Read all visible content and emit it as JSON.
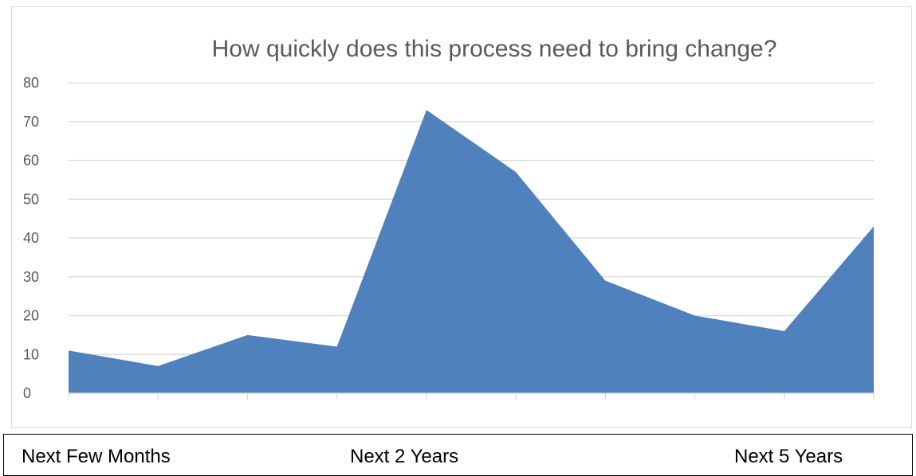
{
  "chart_data": {
    "type": "area",
    "title": "How quickly does this process need to bring change?",
    "xlabel": "",
    "ylabel": "",
    "x": [
      1,
      2,
      3,
      4,
      5,
      6,
      7,
      8,
      9,
      10
    ],
    "values": [
      11,
      7,
      15,
      12,
      73,
      57,
      29,
      20,
      16,
      43
    ],
    "ylim": [
      0,
      80
    ],
    "yticks": [
      "0",
      "10",
      "20",
      "30",
      "40",
      "50",
      "60",
      "70",
      "80"
    ],
    "grid": true,
    "legend": "none",
    "fill_color": "#4f81bd",
    "grid_color": "#d9d9d9"
  },
  "captions": {
    "left": "Next Few Months",
    "middle": "Next 2 Years",
    "right": "Next 5 Years"
  }
}
